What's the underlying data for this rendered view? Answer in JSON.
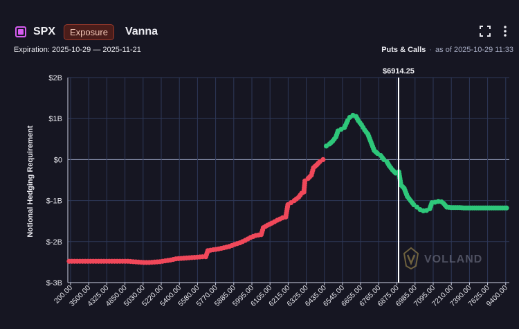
{
  "header": {
    "symbol": "SPX",
    "badge": "Exposure",
    "metric": "Vanna",
    "expiration": "Expiration: 2025-10-29 — 2025-11-21",
    "mode": "Puts & Calls",
    "separator": "·",
    "as_of": "as of 2025-10-29 11:33",
    "accent_color": "#d65cf0"
  },
  "icons": {
    "expand": "expand-icon",
    "more": "more-vertical-icon",
    "logo": "volland-logo-icon"
  },
  "watermark": "VOLLAND",
  "colors": {
    "negative": "#f0485a",
    "positive": "#2ec77a",
    "spot_line": "#ffffff",
    "grid": "#2e3858"
  },
  "chart_data": {
    "type": "scatter",
    "ylabel": "Notional Hedging Requirement",
    "y_ticks": [
      {
        "value": 2,
        "label": "$2B"
      },
      {
        "value": 1,
        "label": "$1B"
      },
      {
        "value": 0,
        "label": "$0"
      },
      {
        "value": -1,
        "label": "$-1B"
      },
      {
        "value": -2,
        "label": "$-2B"
      },
      {
        "value": -3,
        "label": "$-3B"
      }
    ],
    "ylim": [
      -3,
      2
    ],
    "x_tick_labels": [
      "200.00",
      "3500.00",
      "4325.00",
      "4850.00",
      "5030.00",
      "5220.00",
      "5400.00",
      "5580.00",
      "5770.00",
      "5885.00",
      "5995.00",
      "6105.00",
      "6215.00",
      "6325.00",
      "6435.00",
      "6545.00",
      "6655.00",
      "6765.00",
      "6875.00",
      "6985.00",
      "7095.00",
      "7210.00",
      "7390.00",
      "7625.00",
      "9400.00"
    ],
    "spot": {
      "value": 6914.25,
      "label": "$6914.25",
      "x_index": 18.65
    },
    "grid": true,
    "series": [
      {
        "color": "negative",
        "points": [
          [
            0,
            -2.48
          ],
          [
            0.5,
            -2.48
          ],
          [
            1,
            -2.48
          ],
          [
            1.5,
            -2.48
          ],
          [
            2,
            -2.48
          ],
          [
            2.5,
            -2.48
          ],
          [
            3,
            -2.48
          ],
          [
            3.5,
            -2.48
          ],
          [
            4,
            -2.48
          ],
          [
            4.5,
            -2.48
          ],
          [
            5,
            -2.48
          ],
          [
            5.5,
            -2.48
          ],
          [
            6,
            -2.49
          ],
          [
            6.5,
            -2.5
          ],
          [
            7,
            -2.51
          ],
          [
            7.5,
            -2.51
          ],
          [
            8,
            -2.5
          ],
          [
            8.5,
            -2.49
          ],
          [
            9,
            -2.47
          ],
          [
            9.5,
            -2.45
          ],
          [
            10,
            -2.42
          ],
          [
            10.5,
            -2.41
          ],
          [
            11,
            -2.4
          ],
          [
            11.5,
            -2.39
          ],
          [
            12,
            -2.38
          ],
          [
            12.5,
            -2.37
          ],
          [
            12.8,
            -2.37
          ],
          [
            13,
            -2.22
          ],
          [
            13.5,
            -2.2
          ],
          [
            14,
            -2.18
          ],
          [
            14.5,
            -2.15
          ],
          [
            15,
            -2.12
          ],
          [
            15.5,
            -2.07
          ],
          [
            16,
            -2.03
          ],
          [
            16.5,
            -1.97
          ],
          [
            17,
            -1.9
          ],
          [
            17.5,
            -1.85
          ],
          [
            18,
            -1.83
          ],
          [
            18.2,
            -1.66
          ],
          [
            18.6,
            -1.6
          ],
          [
            19,
            -1.55
          ],
          [
            19.5,
            -1.48
          ],
          [
            20,
            -1.42
          ],
          [
            20.3,
            -1.4
          ],
          [
            20.5,
            -1.1
          ],
          [
            20.8,
            -1.05
          ],
          [
            21.1,
            -1.0
          ],
          [
            21.5,
            -0.92
          ],
          [
            21.8,
            -0.82
          ],
          [
            22,
            -0.79
          ],
          [
            22.1,
            -0.52
          ],
          [
            22.4,
            -0.46
          ],
          [
            22.7,
            -0.38
          ],
          [
            22.9,
            -0.2
          ],
          [
            23.2,
            -0.13
          ],
          [
            23.5,
            -0.05
          ],
          [
            23.8,
            0.0
          ]
        ]
      },
      {
        "color": "positive",
        "points": [
          [
            24.1,
            0.33
          ],
          [
            24.4,
            0.38
          ],
          [
            24.7,
            0.45
          ],
          [
            25,
            0.55
          ],
          [
            25.2,
            0.7
          ],
          [
            25.5,
            0.74
          ],
          [
            25.8,
            0.78
          ],
          [
            26.1,
            0.95
          ],
          [
            26.3,
            1.03
          ],
          [
            26.6,
            1.08
          ],
          [
            26.9,
            1.05
          ],
          [
            27.1,
            0.95
          ],
          [
            27.4,
            0.85
          ],
          [
            27.7,
            0.72
          ],
          [
            28,
            0.62
          ],
          [
            28.3,
            0.42
          ],
          [
            28.6,
            0.22
          ],
          [
            28.9,
            0.15
          ],
          [
            29.2,
            0.1
          ],
          [
            29.5,
            0.0
          ],
          [
            29.8,
            -0.06
          ],
          [
            30,
            -0.15
          ],
          [
            30.3,
            -0.25
          ],
          [
            30.6,
            -0.33
          ],
          [
            30.9,
            -0.3
          ],
          [
            31.1,
            -0.62
          ],
          [
            31.4,
            -0.7
          ],
          [
            31.7,
            -0.9
          ],
          [
            32,
            -1.0
          ],
          [
            32.3,
            -1.1
          ],
          [
            32.6,
            -1.16
          ],
          [
            32.9,
            -1.22
          ],
          [
            33.2,
            -1.25
          ],
          [
            33.5,
            -1.24
          ],
          [
            33.8,
            -1.2
          ],
          [
            34,
            -1.05
          ],
          [
            34.3,
            -1.04
          ],
          [
            34.6,
            -1.02
          ],
          [
            34.9,
            -1.03
          ],
          [
            35.1,
            -1.07
          ],
          [
            35.4,
            -1.16
          ],
          [
            35.8,
            -1.17
          ],
          [
            36.2,
            -1.17
          ],
          [
            36.6,
            -1.17
          ],
          [
            37,
            -1.18
          ],
          [
            37.4,
            -1.18
          ],
          [
            37.8,
            -1.18
          ],
          [
            38.2,
            -1.18
          ],
          [
            38.6,
            -1.18
          ],
          [
            39,
            -1.18
          ],
          [
            39.4,
            -1.18
          ],
          [
            39.8,
            -1.18
          ],
          [
            40.2,
            -1.18
          ],
          [
            40.6,
            -1.18
          ],
          [
            41,
            -1.18
          ]
        ]
      }
    ]
  }
}
